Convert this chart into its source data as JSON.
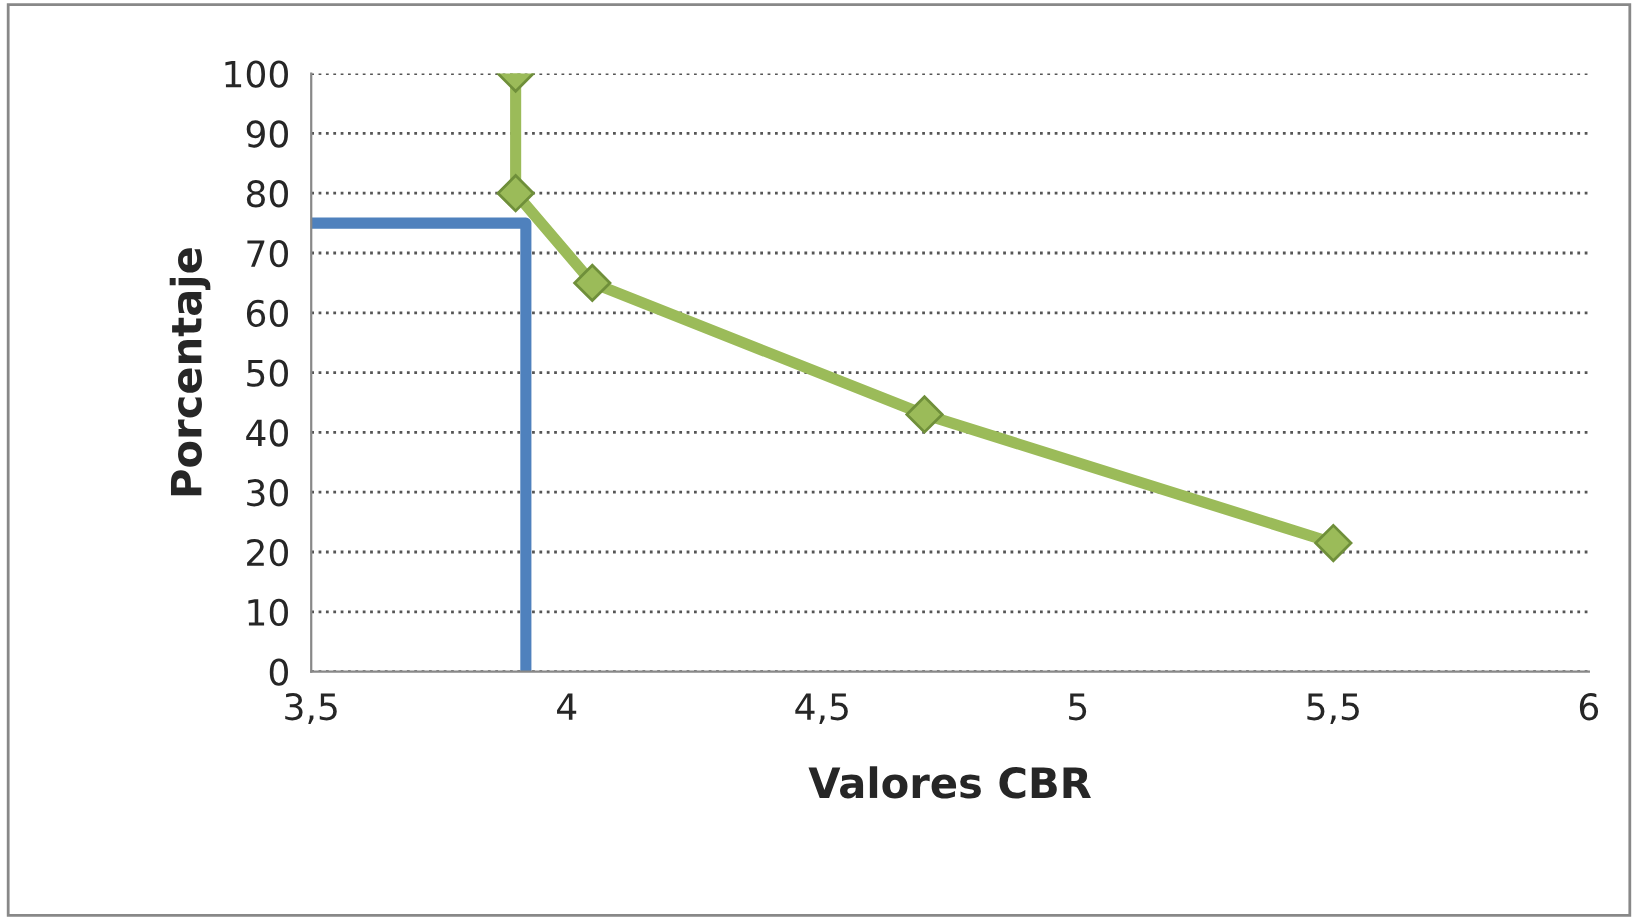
{
  "chart_data": {
    "type": "line",
    "xlabel": "Valores CBR",
    "ylabel": "Porcentaje",
    "series": [
      {
        "color": "#9bbb59",
        "marker": "diamond",
        "x": [
          3.9,
          3.9,
          4.05,
          4.7,
          5.5
        ],
        "values": [
          100,
          80,
          65,
          43,
          21.5
        ]
      },
      {
        "color": "#4f81bd",
        "marker": "none",
        "x": [
          3.5,
          3.92,
          3.92
        ],
        "values": [
          75,
          75,
          0
        ]
      }
    ],
    "xlim": [
      3.5,
      6
    ],
    "xticks": [
      {
        "value": 3.5,
        "label": "3,5"
      },
      4,
      {
        "value": 4.5,
        "label": "4,5"
      },
      5,
      {
        "value": 5.5,
        "label": "5,5"
      },
      6
    ],
    "ylim": [
      0,
      100
    ],
    "yticks": [
      0,
      10,
      20,
      30,
      40,
      50,
      60,
      70,
      80,
      90,
      100
    ],
    "grid": "y"
  }
}
